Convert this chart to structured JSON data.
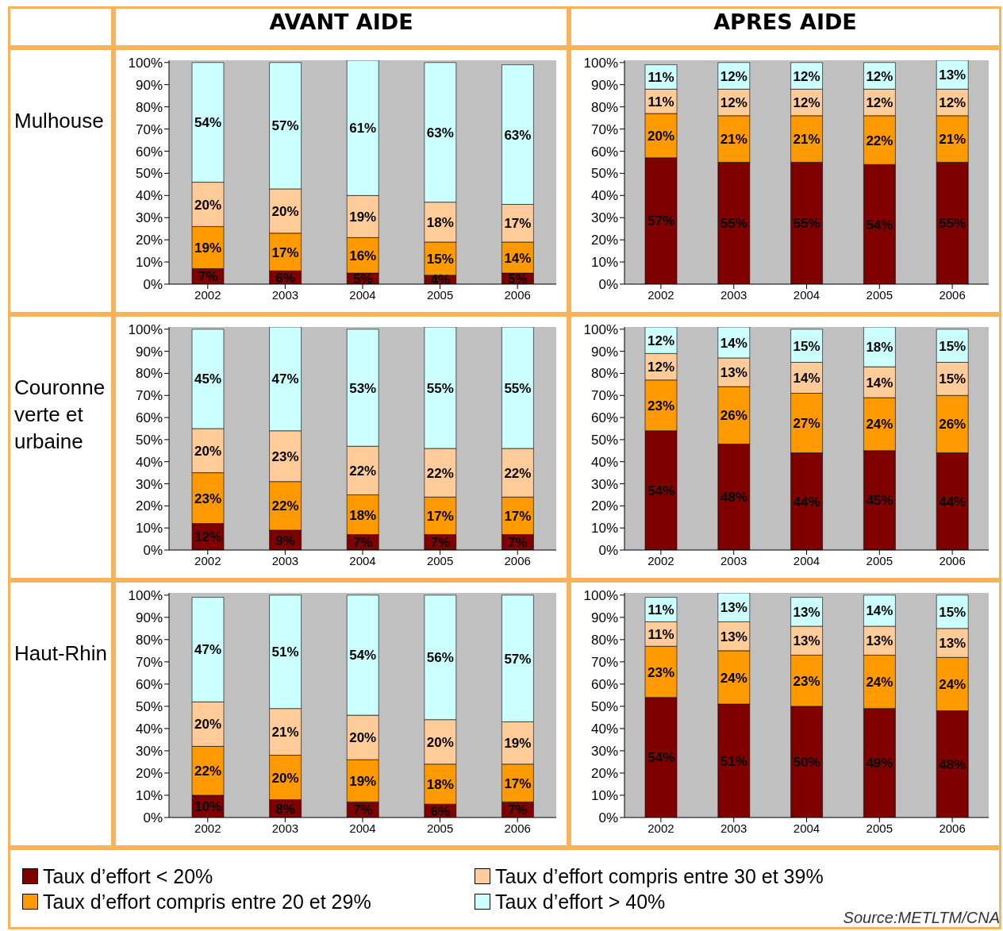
{
  "chart_data": [
    {
      "type": "bar",
      "stacked": true,
      "title": "AVANT AIDE",
      "ylabel": "Mulhouse",
      "categories": [
        "2002",
        "2003",
        "2004",
        "2005",
        "2006"
      ],
      "ylim": [
        0,
        101
      ],
      "yticks": [
        {
          "value": 0,
          "label": "0%"
        },
        {
          "value": 10,
          "label": "10%"
        },
        {
          "value": 20,
          "label": "20%"
        },
        {
          "value": 30,
          "label": "30%"
        },
        {
          "value": 40,
          "label": "40%"
        },
        {
          "value": 50,
          "label": "50%"
        },
        {
          "value": 60,
          "label": "60%"
        },
        {
          "value": 70,
          "label": "70%"
        },
        {
          "value": 80,
          "label": "80%"
        },
        {
          "value": 90,
          "label": "90%"
        },
        {
          "value": 100,
          "label": "100%"
        }
      ],
      "series": [
        {
          "color": "#800000",
          "values": [
            7,
            6,
            5,
            4,
            5
          ],
          "value_labels": [
            "7%",
            "6%",
            "5%",
            "4%",
            "5%"
          ]
        },
        {
          "color": "#ff9900",
          "values": [
            19,
            17,
            16,
            15,
            14
          ],
          "value_labels": [
            "19%",
            "17%",
            "16%",
            "15%",
            "14%"
          ]
        },
        {
          "color": "#ffcc99",
          "values": [
            20,
            20,
            19,
            18,
            17
          ],
          "value_labels": [
            "20%",
            "20%",
            "19%",
            "18%",
            "17%"
          ]
        },
        {
          "color": "#ccffff",
          "values": [
            54,
            57,
            61,
            63,
            63
          ],
          "value_labels": [
            "54%",
            "57%",
            "61%",
            "63%",
            "63%"
          ]
        }
      ]
    },
    {
      "type": "bar",
      "stacked": true,
      "title": "APRES AIDE",
      "categories": [
        "2002",
        "2003",
        "2004",
        "2005",
        "2006"
      ],
      "ylim": [
        0,
        101
      ],
      "yticks": [
        {
          "value": 0,
          "label": "0%"
        },
        {
          "value": 10,
          "label": "10%"
        },
        {
          "value": 20,
          "label": "20%"
        },
        {
          "value": 30,
          "label": "30%"
        },
        {
          "value": 40,
          "label": "40%"
        },
        {
          "value": 50,
          "label": "50%"
        },
        {
          "value": 60,
          "label": "60%"
        },
        {
          "value": 70,
          "label": "70%"
        },
        {
          "value": 80,
          "label": "80%"
        },
        {
          "value": 90,
          "label": "90%"
        },
        {
          "value": 100,
          "label": "100%"
        }
      ],
      "series": [
        {
          "color": "#800000",
          "values": [
            57,
            55,
            55,
            54,
            55
          ],
          "value_labels": [
            "57%",
            "55%",
            "55%",
            "54%",
            "55%"
          ]
        },
        {
          "color": "#ff9900",
          "values": [
            20,
            21,
            21,
            22,
            21
          ],
          "value_labels": [
            "20%",
            "21%",
            "21%",
            "22%",
            "21%"
          ]
        },
        {
          "color": "#ffcc99",
          "values": [
            11,
            12,
            12,
            12,
            12
          ],
          "value_labels": [
            "11%",
            "12%",
            "12%",
            "12%",
            "12%"
          ]
        },
        {
          "color": "#ccffff",
          "values": [
            11,
            12,
            12,
            12,
            13
          ],
          "value_labels": [
            "11%",
            "12%",
            "12%",
            "12%",
            "13%"
          ]
        }
      ]
    },
    {
      "type": "bar",
      "stacked": true,
      "ylabel": "Couronne verte et urbaine",
      "categories": [
        "2002",
        "2003",
        "2004",
        "2005",
        "2006"
      ],
      "ylim": [
        0,
        101
      ],
      "yticks": [
        {
          "value": 0,
          "label": "0%"
        },
        {
          "value": 10,
          "label": "10%"
        },
        {
          "value": 20,
          "label": "20%"
        },
        {
          "value": 30,
          "label": "30%"
        },
        {
          "value": 40,
          "label": "40%"
        },
        {
          "value": 50,
          "label": "50%"
        },
        {
          "value": 60,
          "label": "60%"
        },
        {
          "value": 70,
          "label": "70%"
        },
        {
          "value": 80,
          "label": "80%"
        },
        {
          "value": 90,
          "label": "90%"
        },
        {
          "value": 100,
          "label": "100%"
        }
      ],
      "series": [
        {
          "color": "#800000",
          "values": [
            12,
            9,
            7,
            7,
            7
          ],
          "value_labels": [
            "12%",
            "9%",
            "7%",
            "7%",
            "7%"
          ]
        },
        {
          "color": "#ff9900",
          "values": [
            23,
            22,
            18,
            17,
            17
          ],
          "value_labels": [
            "23%",
            "22%",
            "18%",
            "17%",
            "17%"
          ]
        },
        {
          "color": "#ffcc99",
          "values": [
            20,
            23,
            22,
            22,
            22
          ],
          "value_labels": [
            "20%",
            "23%",
            "22%",
            "22%",
            "22%"
          ]
        },
        {
          "color": "#ccffff",
          "values": [
            45,
            47,
            53,
            55,
            55
          ],
          "value_labels": [
            "45%",
            "47%",
            "53%",
            "55%",
            "55%"
          ]
        }
      ]
    },
    {
      "type": "bar",
      "stacked": true,
      "categories": [
        "2002",
        "2003",
        "2004",
        "2005",
        "2006"
      ],
      "ylim": [
        0,
        101
      ],
      "yticks": [
        {
          "value": 0,
          "label": "0%"
        },
        {
          "value": 10,
          "label": "10%"
        },
        {
          "value": 20,
          "label": "20%"
        },
        {
          "value": 30,
          "label": "30%"
        },
        {
          "value": 40,
          "label": "40%"
        },
        {
          "value": 50,
          "label": "50%"
        },
        {
          "value": 60,
          "label": "60%"
        },
        {
          "value": 70,
          "label": "70%"
        },
        {
          "value": 80,
          "label": "80%"
        },
        {
          "value": 90,
          "label": "90%"
        },
        {
          "value": 100,
          "label": "100%"
        }
      ],
      "series": [
        {
          "color": "#800000",
          "values": [
            54,
            48,
            44,
            45,
            44
          ],
          "value_labels": [
            "54%",
            "48%",
            "44%",
            "45%",
            "44%"
          ]
        },
        {
          "color": "#ff9900",
          "values": [
            23,
            26,
            27,
            24,
            26
          ],
          "value_labels": [
            "23%",
            "26%",
            "27%",
            "24%",
            "26%"
          ]
        },
        {
          "color": "#ffcc99",
          "values": [
            12,
            13,
            14,
            14,
            15
          ],
          "value_labels": [
            "12%",
            "13%",
            "14%",
            "14%",
            "15%"
          ]
        },
        {
          "color": "#ccffff",
          "values": [
            12,
            14,
            15,
            18,
            15
          ],
          "value_labels": [
            "12%",
            "14%",
            "15%",
            "18%",
            "15%"
          ]
        }
      ]
    },
    {
      "type": "bar",
      "stacked": true,
      "ylabel": "Haut-Rhin",
      "categories": [
        "2002",
        "2003",
        "2004",
        "2005",
        "2006"
      ],
      "ylim": [
        0,
        101
      ],
      "yticks": [
        {
          "value": 0,
          "label": "0%"
        },
        {
          "value": 10,
          "label": "10%"
        },
        {
          "value": 20,
          "label": "20%"
        },
        {
          "value": 30,
          "label": "30%"
        },
        {
          "value": 40,
          "label": "40%"
        },
        {
          "value": 50,
          "label": "50%"
        },
        {
          "value": 60,
          "label": "60%"
        },
        {
          "value": 70,
          "label": "70%"
        },
        {
          "value": 80,
          "label": "80%"
        },
        {
          "value": 90,
          "label": "90%"
        },
        {
          "value": 100,
          "label": "100%"
        }
      ],
      "series": [
        {
          "color": "#800000",
          "values": [
            10,
            8,
            7,
            6,
            7
          ],
          "value_labels": [
            "10%",
            "8%",
            "7%",
            "6%",
            "7%"
          ]
        },
        {
          "color": "#ff9900",
          "values": [
            22,
            20,
            19,
            18,
            17
          ],
          "value_labels": [
            "22%",
            "20%",
            "19%",
            "18%",
            "17%"
          ]
        },
        {
          "color": "#ffcc99",
          "values": [
            20,
            21,
            20,
            20,
            19
          ],
          "value_labels": [
            "20%",
            "21%",
            "20%",
            "20%",
            "19%"
          ]
        },
        {
          "color": "#ccffff",
          "values": [
            47,
            51,
            54,
            56,
            57
          ],
          "value_labels": [
            "47%",
            "51%",
            "54%",
            "56%",
            "57%"
          ]
        }
      ]
    },
    {
      "type": "bar",
      "stacked": true,
      "legend": "bottom",
      "annotations": [
        "Source:METLTM/CNA"
      ],
      "categories": [
        "2002",
        "2003",
        "2004",
        "2005",
        "2006"
      ],
      "ylim": [
        0,
        101
      ],
      "yticks": [
        {
          "value": 0,
          "label": "0%"
        },
        {
          "value": 10,
          "label": "10%"
        },
        {
          "value": 20,
          "label": "20%"
        },
        {
          "value": 30,
          "label": "30%"
        },
        {
          "value": 40,
          "label": "40%"
        },
        {
          "value": 50,
          "label": "50%"
        },
        {
          "value": 60,
          "label": "60%"
        },
        {
          "value": 70,
          "label": "70%"
        },
        {
          "value": 80,
          "label": "80%"
        },
        {
          "value": 90,
          "label": "90%"
        },
        {
          "value": 100,
          "label": "100%"
        }
      ],
      "series": [
        {
          "name": "Taux d’effort < 20%",
          "color": "#800000",
          "values": [
            54,
            51,
            50,
            49,
            48
          ],
          "value_labels": [
            "54%",
            "51%",
            "50%",
            "49%",
            "48%"
          ]
        },
        {
          "name": "Taux d’effort compris entre 20 et 29%",
          "color": "#ff9900",
          "values": [
            23,
            24,
            23,
            24,
            24
          ],
          "value_labels": [
            "23%",
            "24%",
            "23%",
            "24%",
            "24%"
          ]
        },
        {
          "name": "Taux d’effort compris entre 30 et 39%",
          "color": "#ffcc99",
          "values": [
            11,
            13,
            13,
            13,
            13
          ],
          "value_labels": [
            "11%",
            "13%",
            "13%",
            "13%",
            "13%"
          ]
        },
        {
          "name": "Taux d’effort > 40%",
          "color": "#ccffff",
          "values": [
            11,
            13,
            13,
            14,
            15
          ],
          "value_labels": [
            "11%",
            "13%",
            "13%",
            "14%",
            "15%"
          ]
        }
      ]
    }
  ]
}
